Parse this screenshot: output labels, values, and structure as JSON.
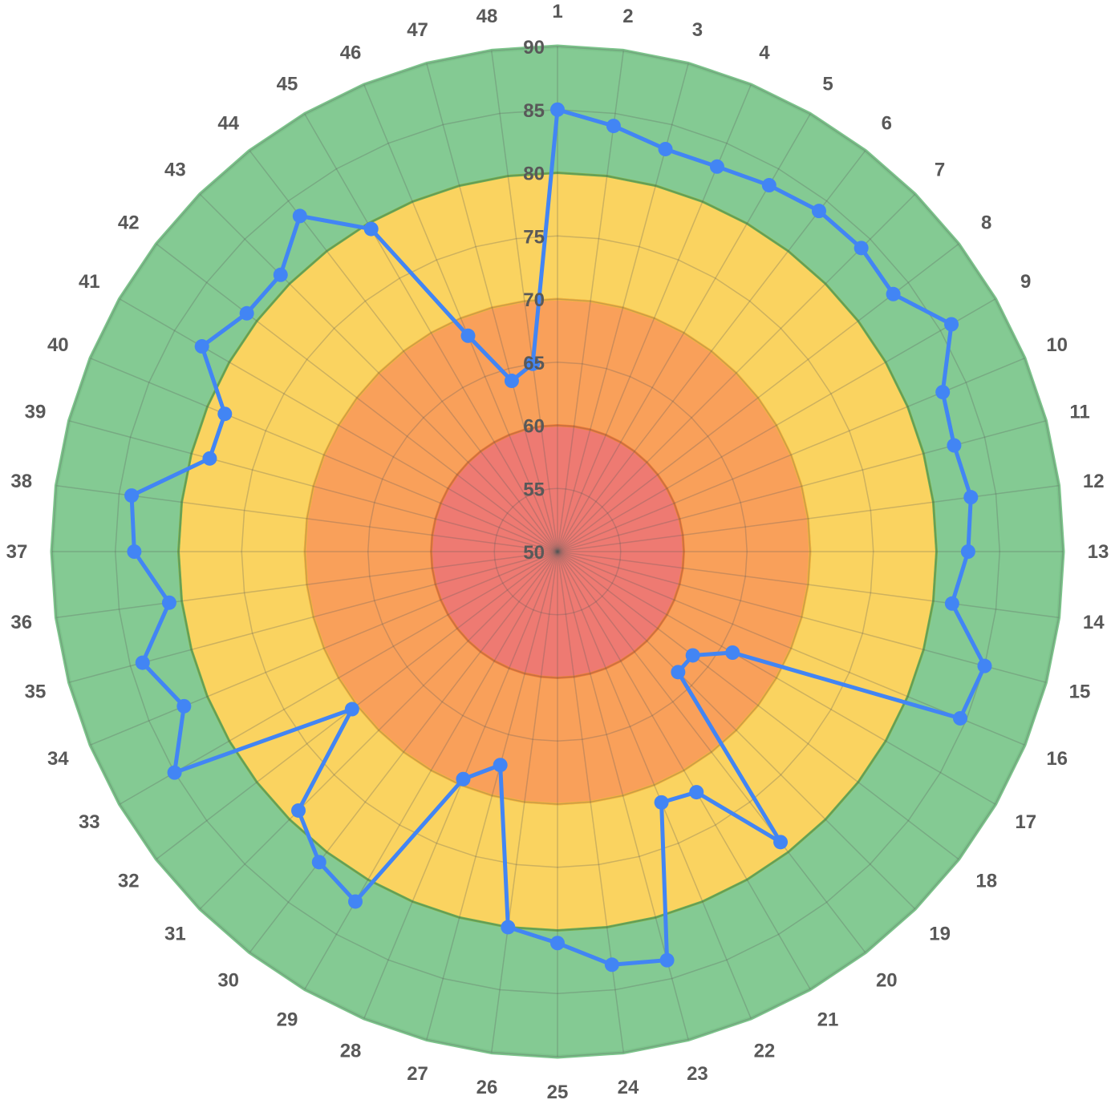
{
  "chart_data": {
    "type": "radar",
    "title": "",
    "categories": [
      "1",
      "2",
      "3",
      "4",
      "5",
      "6",
      "7",
      "8",
      "9",
      "10",
      "11",
      "12",
      "13",
      "14",
      "15",
      "16",
      "17",
      "18",
      "19",
      "20",
      "21",
      "22",
      "23",
      "24",
      "25",
      "26",
      "27",
      "28",
      "29",
      "30",
      "31",
      "32",
      "33",
      "34",
      "35",
      "36",
      "37",
      "38",
      "39",
      "40",
      "41",
      "42",
      "43",
      "44",
      "45",
      "46",
      "47",
      "48"
    ],
    "radial_ticks": [
      50,
      55,
      60,
      65,
      70,
      75,
      80,
      85,
      90
    ],
    "rlim": [
      50,
      90
    ],
    "grid": true,
    "legend": "none",
    "bands": [
      {
        "from": 80,
        "to": 90,
        "color": "#84CA93"
      },
      {
        "from": 70,
        "to": 80,
        "color": "#FAD360"
      },
      {
        "from": 60,
        "to": 70,
        "color": "#F9A05A"
      },
      {
        "from": 50,
        "to": 60,
        "color": "#EE7A72"
      }
    ],
    "series": [
      {
        "color": "#4285F4",
        "values": [
          85.0,
          84.0,
          83.0,
          83.0,
          83.5,
          84.0,
          84.0,
          83.5,
          86.0,
          83.0,
          82.5,
          83.0,
          82.5,
          81.5,
          85.0,
          84.5,
          66.0,
          63.5,
          63.5,
          79.0,
          72.0,
          71.5,
          83.5,
          83.0,
          81.0,
          80.0,
          67.5,
          69.5,
          82.0,
          81.0,
          79.0,
          70.5,
          85.0,
          82.0,
          84.0,
          81.0,
          83.5,
          84.0,
          78.5,
          78.5,
          82.5,
          81.0,
          81.0,
          83.5,
          79.5,
          68.5,
          64.0,
          65.0
        ]
      }
    ]
  }
}
